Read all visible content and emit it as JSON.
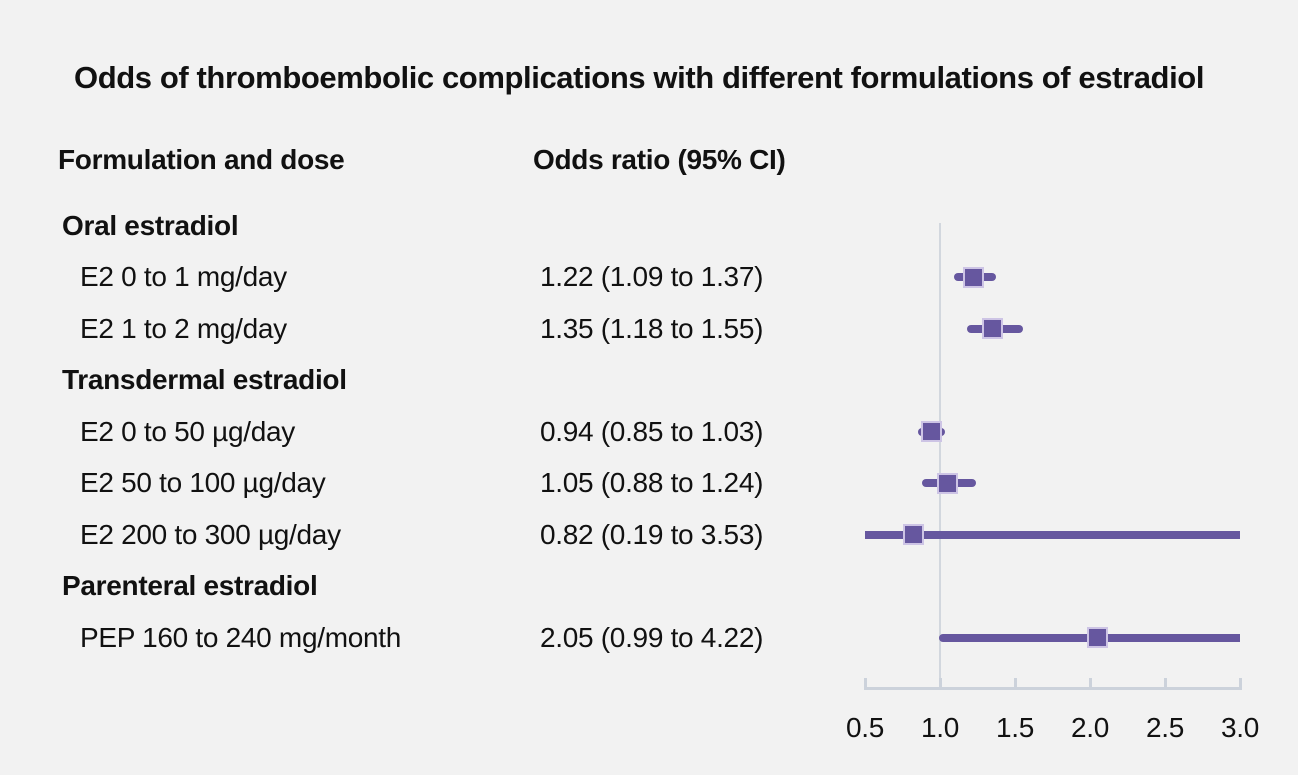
{
  "chart_data": {
    "type": "forest",
    "title": "Odds of thromboembolic complications with different formulations of estradiol",
    "column_headers": {
      "formulation": "Formulation and dose",
      "odds_ratio": "Odds ratio (95% CI)"
    },
    "axis": {
      "min": 0.5,
      "max": 3.0,
      "reference_line": 1.0,
      "ticks": [
        {
          "value": 0.5,
          "label": "0.5"
        },
        {
          "value": 1.0,
          "label": "1.0"
        },
        {
          "value": 1.5,
          "label": "1.5"
        },
        {
          "value": 2.0,
          "label": "2.0"
        },
        {
          "value": 2.5,
          "label": "2.5"
        },
        {
          "value": 3.0,
          "label": "3.0"
        }
      ]
    },
    "rows": [
      {
        "kind": "group",
        "label": "Oral estradiol"
      },
      {
        "kind": "item",
        "label": "E2 0 to 1 mg/day",
        "or_text": "1.22 (1.09 to 1.37)",
        "or": 1.22,
        "ci_low": 1.09,
        "ci_high": 1.37
      },
      {
        "kind": "item",
        "label": "E2 1 to 2 mg/day",
        "or_text": "1.35 (1.18 to 1.55)",
        "or": 1.35,
        "ci_low": 1.18,
        "ci_high": 1.55
      },
      {
        "kind": "group",
        "label": "Transdermal estradiol"
      },
      {
        "kind": "item",
        "label": "E2 0 to 50 µg/day",
        "or_text": "0.94 (0.85 to 1.03)",
        "or": 0.94,
        "ci_low": 0.85,
        "ci_high": 1.03
      },
      {
        "kind": "item",
        "label": "E2 50 to 100 µg/day",
        "or_text": "1.05 (0.88 to 1.24)",
        "or": 1.05,
        "ci_low": 0.88,
        "ci_high": 1.24
      },
      {
        "kind": "item",
        "label": "E2 200 to 300 µg/day",
        "or_text": "0.82 (0.19 to 3.53)",
        "or": 0.82,
        "ci_low": 0.19,
        "ci_high": 3.53
      },
      {
        "kind": "group",
        "label": "Parenteral estradiol"
      },
      {
        "kind": "item",
        "label": "PEP 160 to 240 mg/month",
        "or_text": "2.05 (0.99 to 4.22)",
        "or": 2.05,
        "ci_low": 0.99,
        "ci_high": 4.22
      }
    ]
  },
  "colors": {
    "background": "#f2f2f2",
    "text": "#111111",
    "marker": "#66579f",
    "marker_border": "#cdc4e5",
    "axis": "#ccd2db",
    "reference_line": "#d2d7de"
  }
}
